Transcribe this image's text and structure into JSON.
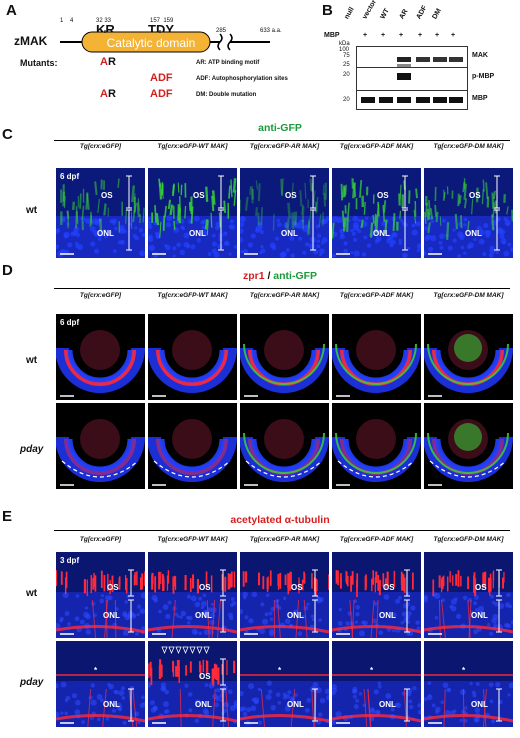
{
  "panelA": {
    "label": "A",
    "protein": "zMAK",
    "domain": "Catalytic domain",
    "pos_1": "1",
    "pos_4": "4",
    "pos_32_33": "32 33",
    "pos_157_159": "157  159",
    "pos_285": "285",
    "pos_633": "633 a.a.",
    "kr": "KR",
    "tdy": "TDY",
    "mutants_label": "Mutants:",
    "ar_red": "A",
    "ar_black": "R",
    "adf_red": "ADF",
    "dm_ar_red": "A",
    "dm_ar_black": "R",
    "dm_adf_red": "ADF",
    "legend_ar": "AR: ATP binding motif",
    "legend_adf": "ADF: Autophosphorylation sites",
    "legend_dm": "DM: Double mutation"
  },
  "panelB": {
    "label": "B",
    "lanes": [
      "null",
      "vector",
      "WT",
      "AR",
      "ADF",
      "DM"
    ],
    "mbp_label": "MBP",
    "mbp_signs": [
      "+",
      "+",
      "+",
      "+",
      "+",
      "+"
    ],
    "kda": "kDa",
    "blot1": {
      "name": "MAK",
      "markers": [
        "100",
        "75",
        "25"
      ]
    },
    "blot2": {
      "name": "p-MBP",
      "markers": [
        "20"
      ]
    },
    "blot3": {
      "name": "MBP",
      "markers": [
        "20"
      ]
    }
  },
  "panelC": {
    "label": "C",
    "title": "anti-GFP",
    "columns": [
      "Tg[crx:eGFP]",
      "Tg[crx:eGFP-WT MAK]",
      "Tg[crx:eGFP-AR MAK]",
      "Tg[crx:eGFP-ADF MAK]",
      "Tg[crx:eGFP-DM MAK]"
    ],
    "stage": "6 dpf",
    "row": "wt",
    "os": "OS",
    "onl": "ONL"
  },
  "panelD": {
    "label": "D",
    "title_red": "zpr1",
    "title_sep": " / ",
    "title_green": "anti-GFP",
    "columns": [
      "Tg[crx:eGFP]",
      "Tg[crx:eGFP-WT MAK]",
      "Tg[crx:eGFP-AR MAK]",
      "Tg[crx:eGFP-ADF MAK]",
      "Tg[crx:eGFP-DM MAK]"
    ],
    "stage": "6 dpf",
    "rows": [
      "wt",
      "pday"
    ]
  },
  "panelE": {
    "label": "E",
    "title_pre": "acetylated ",
    "title_sym": "α",
    "title_post": "-tubulin",
    "columns": [
      "Tg[crx:eGFP]",
      "Tg[crx:eGFP-WT MAK]",
      "Tg[crx:eGFP-AR MAK]",
      "Tg[crx:eGFP-ADF MAK]",
      "Tg[crx:eGFP-DM MAK]"
    ],
    "stage": "3 dpf",
    "rows": [
      "wt",
      "pday"
    ],
    "os": "OS",
    "onl": "ONL",
    "asterisk": "*"
  },
  "colors": {
    "domain_fill": "#f5b335",
    "mutant_red": "#d0201f",
    "title_green": "#1a9a3a",
    "title_red": "#d81e1e",
    "nuclei_blue": "#1c2fd6",
    "gfp_green": "#38d03a",
    "stain_red": "#ff2a3a"
  }
}
